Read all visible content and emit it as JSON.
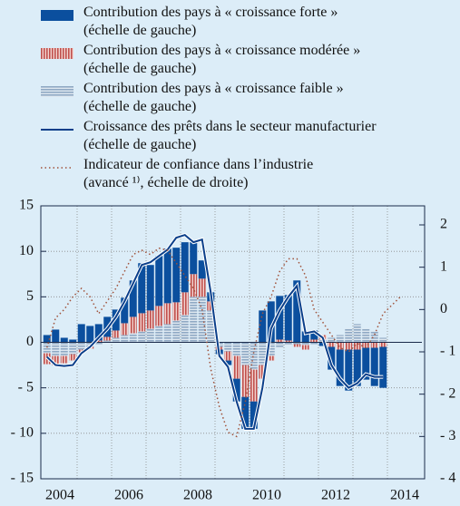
{
  "chart_data": {
    "type": "bar",
    "stacked": true,
    "x": [
      2004.125,
      2004.375,
      2004.625,
      2004.875,
      2005.125,
      2005.375,
      2005.625,
      2005.875,
      2006.125,
      2006.375,
      2006.625,
      2006.875,
      2007.125,
      2007.375,
      2007.625,
      2007.875,
      2008.125,
      2008.375,
      2008.625,
      2008.875,
      2009.125,
      2009.375,
      2009.625,
      2009.875,
      2010.125,
      2010.375,
      2010.625,
      2010.875,
      2011.125,
      2011.375,
      2011.625,
      2011.875,
      2012.125,
      2012.375,
      2012.625,
      2012.875,
      2013.125,
      2013.375,
      2013.625,
      2013.875,
      2014.125,
      2014.375
    ],
    "xlim": [
      2004,
      2015
    ],
    "xticks": [
      {
        "value": 2004.5,
        "label": "2004"
      },
      {
        "value": 2006.5,
        "label": "2006"
      },
      {
        "value": 2008.5,
        "label": "2008"
      },
      {
        "value": 2010.5,
        "label": "2010"
      },
      {
        "value": 2012.5,
        "label": "2012"
      },
      {
        "value": 2014.5,
        "label": "2014"
      }
    ],
    "xgrid": [
      2005,
      2006,
      2007,
      2008,
      2009,
      2010,
      2011,
      2012,
      2013,
      2014
    ],
    "ylim": [
      -15,
      15
    ],
    "yticks": [
      {
        "value": -15,
        "label": "- 15"
      },
      {
        "value": -10,
        "label": "- 10"
      },
      {
        "value": -5,
        "label": "- 5"
      },
      0,
      5,
      10,
      15
    ],
    "y2lim": [
      -4,
      2.45
    ],
    "y2ticks": [
      {
        "value": -4,
        "label": "- 4"
      },
      {
        "value": -3,
        "label": "- 3"
      },
      {
        "value": -2,
        "label": "- 2"
      },
      {
        "value": -1,
        "label": "- 1"
      },
      0,
      1,
      2
    ],
    "grid": true,
    "series": [
      {
        "name": "Contribution des pays à « croissance forte »\n(échelle de gauche)",
        "type": "bar",
        "color": "#0b4f9e",
        "values": [
          0.8,
          1.4,
          0.5,
          0.3,
          2.0,
          1.8,
          1.8,
          2.2,
          2.3,
          2.8,
          4.0,
          5.5,
          5.0,
          5.5,
          6.0,
          6.0,
          5.5,
          3.5,
          2.0,
          1.0,
          -0.5,
          -0.5,
          -2.5,
          -3.5,
          -3.0,
          3.5,
          4.5,
          4.8,
          5.0,
          6.8,
          1.2,
          1.0,
          -0.4,
          -2.5,
          -4.0,
          -4.5,
          -4.0,
          -3.5,
          -4.2,
          -4.5,
          null,
          null
        ]
      },
      {
        "name": "Contribution des pays à « croissance modérée »\n(échelle de gauche)",
        "type": "bar",
        "color": "#c0504d",
        "values": [
          -1.2,
          -1.0,
          -0.8,
          -0.7,
          -0.3,
          -0.2,
          0.2,
          0.4,
          0.8,
          1.3,
          1.8,
          2.0,
          2.0,
          2.2,
          2.3,
          2.0,
          2.5,
          2.5,
          2.0,
          1.0,
          -0.3,
          -1.0,
          -2.5,
          -3.5,
          -3.5,
          -1.5,
          -0.5,
          0.3,
          0.2,
          -0.3,
          -0.5,
          0.3,
          0.5,
          -0.5,
          -0.8,
          -0.8,
          -0.8,
          -0.6,
          -0.6,
          -0.5,
          null,
          null
        ]
      },
      {
        "name": "Contribution des pays à « croissance faible »\n(échelle de gauche)",
        "type": "bar",
        "color": "#8fa9c4",
        "values": [
          -1.2,
          -1.5,
          -1.5,
          -1.3,
          -0.8,
          -0.5,
          -0.2,
          0.2,
          0.5,
          0.8,
          1.0,
          1.2,
          1.5,
          1.8,
          2.0,
          2.4,
          3.0,
          5.0,
          5.0,
          3.5,
          -0.5,
          -1.0,
          -1.5,
          -2.5,
          -3.0,
          -2.5,
          -1.5,
          -0.6,
          -0.3,
          -0.2,
          -0.3,
          -0.2,
          0.3,
          0.5,
          0.8,
          1.5,
          2.0,
          1.5,
          1.2,
          0.5,
          null,
          null
        ]
      },
      {
        "name": "Croissance des prêts dans le secteur manufacturier\n(échelle de gauche)",
        "type": "line",
        "color": "#0b3f8a",
        "values": [
          -1.6,
          -2.5,
          -2.6,
          -2.5,
          -1.2,
          -0.5,
          0.5,
          1.5,
          2.8,
          4.5,
          6.5,
          8.5,
          8.8,
          9.5,
          10.2,
          11.5,
          11.8,
          11.0,
          11.3,
          5.5,
          -1.5,
          -2.7,
          -6.5,
          -9.5,
          -9.5,
          -5.0,
          1.5,
          3.5,
          5.0,
          6.2,
          1.0,
          1.2,
          0.5,
          -2.5,
          -4.0,
          -5.0,
          -4.5,
          -3.5,
          -3.8,
          -3.8,
          null,
          null
        ]
      },
      {
        "name": "Indicateur de confiance dans l’industrie\n(avancé ¹⁾, échelle de droite)",
        "type": "line",
        "dash": "dotted",
        "axis": "y2",
        "color": "#a0523a",
        "values": [
          -0.9,
          -0.2,
          0.0,
          0.3,
          0.5,
          0.3,
          -0.1,
          0.2,
          0.5,
          0.9,
          1.3,
          1.4,
          1.3,
          1.45,
          1.4,
          1.1,
          0.8,
          0.5,
          0.0,
          -1.4,
          -2.3,
          -2.9,
          -3.0,
          -2.2,
          -1.0,
          -0.1,
          0.3,
          0.9,
          1.2,
          1.2,
          0.8,
          0.0,
          -0.3,
          -0.6,
          -0.9,
          -1.0,
          -0.8,
          -0.9,
          -0.6,
          -0.1,
          0.1,
          0.3
        ]
      }
    ]
  }
}
